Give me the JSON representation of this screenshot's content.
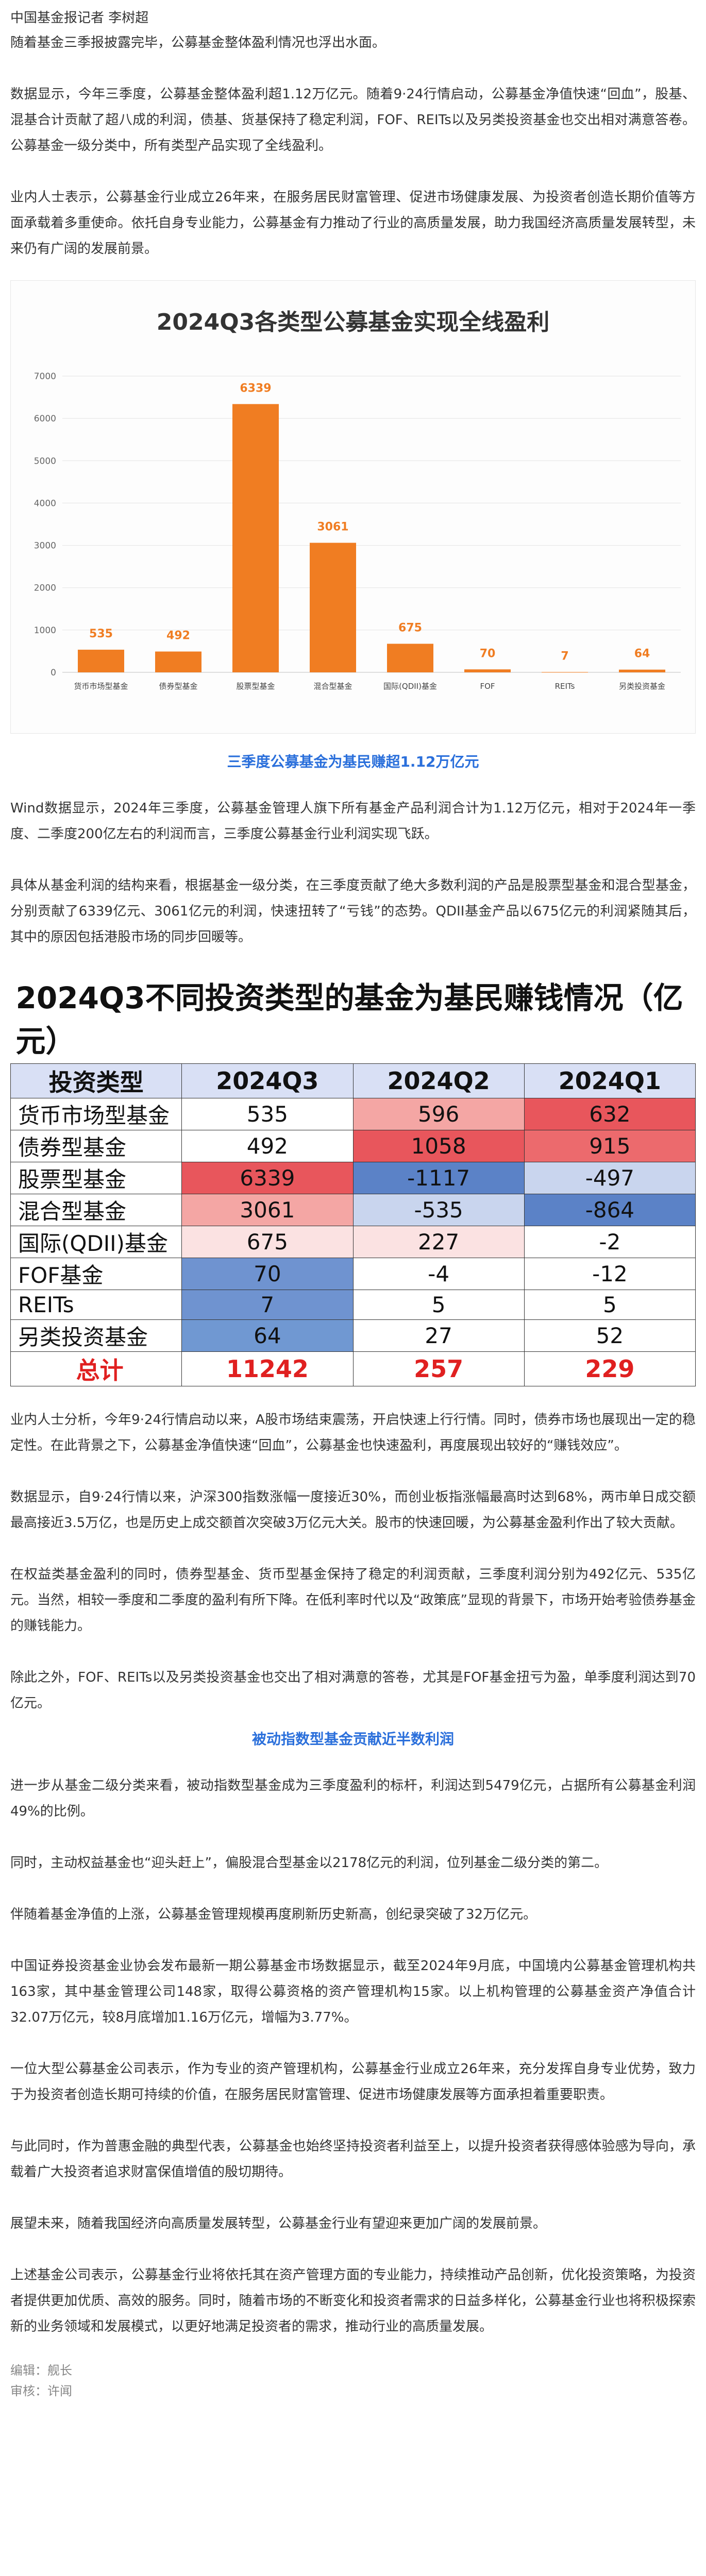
{
  "byline": "中国基金报记者 李树超",
  "paragraphs": {
    "p1": "随着基金三季报披露完毕，公募基金整体盈利情况也浮出水面。",
    "p2": "数据显示，今年三季度，公募基金整体盈利超1.12万亿元。随着9·24行情启动，公募基金净值快速“回血”，股基、混基合计贡献了超八成的利润，债基、货基保持了稳定利润，FOF、REITs以及另类投资基金也交出相对满意答卷。公募基金一级分类中，所有类型产品实现了全线盈利。",
    "p3": "业内人士表示，公募基金行业成立26年来，在服务居民财富管理、促进市场健康发展、为投资者创造长期价值等方面承载着多重使命。依托自身专业能力，公募基金有力推动了行业的高质量发展，助力我国经济高质量发展转型，未来仍有广阔的发展前景。",
    "p4": "Wind数据显示，2024年三季度，公募基金管理人旗下所有基金产品利润合计为1.12万亿元，相对于2024年一季度、二季度200亿左右的利润而言，三季度公募基金行业利润实现飞跃。",
    "p5": "具体从基金利润的结构来看，根据基金一级分类，在三季度贡献了绝大多数利润的产品是股票型基金和混合型基金，分别贡献了6339亿元、3061亿元的利润，快速扭转了“亏钱”的态势。QDII基金产品以675亿元的利润紧随其后，其中的原因包括港股市场的同步回暖等。",
    "p6": "业内人士分析，今年9·24行情启动以来，A股市场结束震荡，开启快速上行行情。同时，债券市场也展现出一定的稳定性。在此背景之下，公募基金净值快速“回血”，公募基金也快速盈利，再度展现出较好的“赚钱效应”。",
    "p7": "数据显示，自9·24行情以来，沪深300指数涨幅一度接近30%，而创业板指涨幅最高时达到68%，两市单日成交额最高接近3.5万亿，也是历史上成交额首次突破3万亿元大关。股市的快速回暖，为公募基金盈利作出了较大贡献。",
    "p8": "在权益类基金盈利的同时，债券型基金、货币型基金保持了稳定的利润贡献，三季度利润分别为492亿元、535亿元。当然，相较一季度和二季度的盈利有所下降。在低利率时代以及“政策底”显现的背景下，市场开始考验债券基金的赚钱能力。",
    "p9": "除此之外，FOF、REITs以及另类投资基金也交出了相对满意的答卷，尤其是FOF基金扭亏为盈，单季度利润达到70亿元。",
    "p10": "进一步从基金二级分类来看，被动指数型基金成为三季度盈利的标杆，利润达到5479亿元，占据所有公募基金利润49%的比例。",
    "p11": "同时，主动权益基金也“迎头赶上”，偏股混合型基金以2178亿元的利润，位列基金二级分类的第二。",
    "p12": "伴随着基金净值的上涨，公募基金管理规模再度刷新历史新高，创纪录突破了32万亿元。",
    "p13": "中国证券投资基金业协会发布最新一期公募基金市场数据显示，截至2024年9月底，中国境内公募基金管理机构共163家，其中基金管理公司148家，取得公募资格的资产管理机构15家。以上机构管理的公募基金资产净值合计32.07万亿元，较8月底增加1.16万亿元，增幅为3.77%。",
    "p14": "一位大型公募基金公司表示，作为专业的资产管理机构，公募基金行业成立26年来，充分发挥自身专业优势，致力于为投资者创造长期可持续的价值，在服务居民财富管理、促进市场健康发展等方面承担着重要职责。",
    "p15": "与此同时，作为普惠金融的典型代表，公募基金也始终坚持投资者利益至上，以提升投资者获得感体验感为导向，承载着广大投资者追求财富保值增值的殷切期待。",
    "p16": "展望未来，随着我国经济向高质量发展转型，公募基金行业有望迎来更加广阔的发展前景。",
    "p17": "上述基金公司表示，公募基金行业将依托其在资产管理方面的专业能力，持续推动产品创新，优化投资策略，为投资者提供更加优质、高效的服务。同时，随着市场的不断变化和投资者需求的日益多样化，公募基金行业也将积极探索新的业务领域和发展模式，以更好地满足投资者的需求，推动行业的高质量发展。"
  },
  "subheads": {
    "s1": "三季度公募基金为基民赚超1.12万亿元",
    "s2": "被动指数型基金贡献近半数利润"
  },
  "chart_data": {
    "type": "bar",
    "title": "2024Q3各类型公募基金实现全线盈利",
    "categories": [
      "货币市场型基金",
      "债券型基金",
      "股票型基金",
      "混合型基金",
      "国际(QDII)基金",
      "FOF",
      "REITs",
      "另类投资基金"
    ],
    "values": [
      535,
      492,
      6339,
      3061,
      675,
      70,
      7,
      64
    ],
    "ylim": [
      0,
      7000
    ],
    "yticks": [
      "0",
      "1000",
      "2000",
      "3000",
      "4000",
      "5000",
      "6000",
      "7000"
    ],
    "bar_color": "#f07d22",
    "label_color": "#f07d22",
    "grid": true
  },
  "table": {
    "title": "2024Q3不同投资类型的基金为基民赚钱情况（亿元）",
    "headers": [
      "投资类型",
      "2024Q3",
      "2024Q2",
      "2024Q1"
    ],
    "rows": [
      {
        "name": "货币市场型基金",
        "q3": "535",
        "q2": "596",
        "q1": "632"
      },
      {
        "name": "债券型基金",
        "q3": "492",
        "q2": "1058",
        "q1": "915"
      },
      {
        "name": "股票型基金",
        "q3": "6339",
        "q2": "-1117",
        "q1": "-497"
      },
      {
        "name": "混合型基金",
        "q3": "3061",
        "q2": "-535",
        "q1": "-864"
      },
      {
        "name": "国际(QDII)基金",
        "q3": "675",
        "q2": "227",
        "q1": "-2"
      },
      {
        "name": "FOF基金",
        "q3": "70",
        "q2": "-4",
        "q1": "-12"
      },
      {
        "name": "REITs",
        "q3": "7",
        "q2": "5",
        "q1": "5"
      },
      {
        "name": "另类投资基金",
        "q3": "64",
        "q2": "27",
        "q1": "52"
      }
    ],
    "total": {
      "name": "总计",
      "q3": "11242",
      "q2": "257",
      "q1": "229"
    },
    "cell_colors": {
      "q3": [
        "#ffffff",
        "#ffffff",
        "#e8565c",
        "#f4a6a4",
        "#fbe2e2",
        "#6f93d0",
        "#6f93d0",
        "#7098d2"
      ],
      "q2": [
        "#f4a6a4",
        "#e8565c",
        "#5b82c7",
        "#c9d5ee",
        "#fbe2e2",
        "#ffffff",
        "#ffffff",
        "#ffffff"
      ],
      "q1": [
        "#e8565c",
        "#ec6a6d",
        "#c9d5ee",
        "#5b82c7",
        "#ffffff",
        "#ffffff",
        "#ffffff",
        "#ffffff"
      ]
    }
  },
  "footer": {
    "editor": "编辑：舰长",
    "reviewer": "审核：许闻"
  }
}
